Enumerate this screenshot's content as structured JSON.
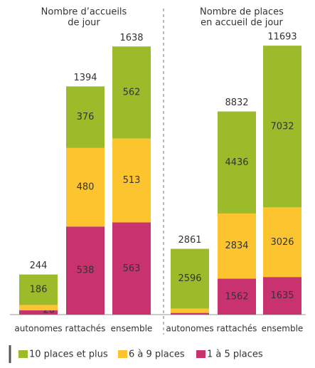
{
  "chart_data": [
    {
      "type": "stacked-bar",
      "title": [
        "Nombre d’accueils",
        "de jour"
      ],
      "categories": [
        "autonomes",
        "rattachés",
        "ensemble"
      ],
      "series": [
        {
          "name": "1 à 5 places",
          "color": "#c8336f",
          "values": [
            26,
            538,
            563
          ]
        },
        {
          "name": "6 à 9 places",
          "color": "#fcc52f",
          "values": [
            33,
            480,
            513
          ]
        },
        {
          "name": "10 places et plus",
          "color": "#9bbb2b",
          "values": [
            186,
            376,
            562
          ]
        }
      ],
      "totals": [
        244,
        1394,
        1638
      ],
      "ylim": [
        0,
        1700
      ]
    },
    {
      "type": "stacked-bar",
      "title": [
        "Nombre de places",
        "en accueil de jour"
      ],
      "categories": [
        "autonomes",
        "rattachés",
        "ensemble"
      ],
      "series": [
        {
          "color": "#c8336f",
          "values": [
            73,
            1562,
            1635
          ]
        },
        {
          "color": "#fcc52f",
          "values": [
            192,
            2834,
            3026
          ]
        },
        {
          "color": "#9bbb2b",
          "values": [
            2596,
            4436,
            7032
          ]
        }
      ],
      "totals": [
        2861,
        8832,
        11693
      ],
      "ylim": [
        0,
        12100
      ]
    }
  ]
}
